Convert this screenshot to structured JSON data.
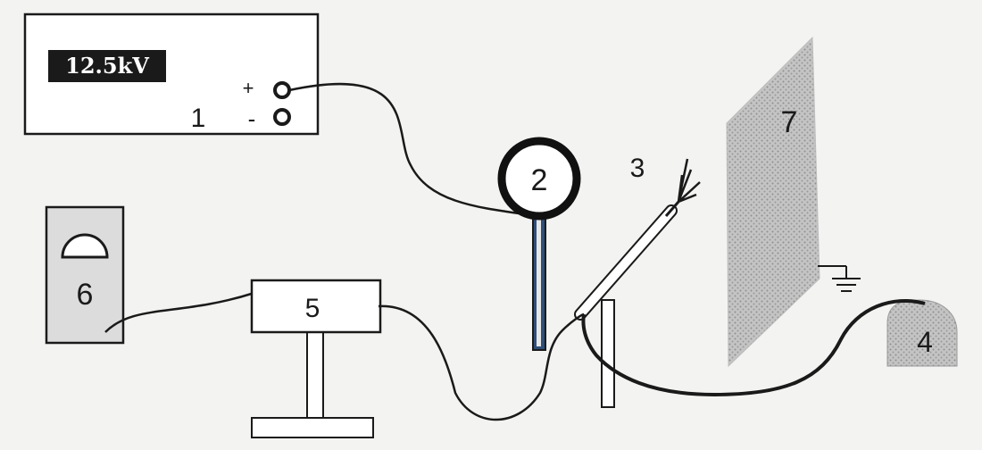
{
  "power_supply": {
    "display": "12.5kV",
    "number": "1",
    "plus": "+",
    "minus": "-"
  },
  "labels": {
    "ring": "2",
    "needle": "3",
    "pump": "4",
    "amplifier": "5",
    "meter": "6",
    "collector": "7"
  },
  "colors": {
    "ink": "#1a1a1a",
    "ring_stem": "#2f4e78",
    "display_bg": "#1a1a1a",
    "collector_fill": "#bdbdbd",
    "pump_fill": "#a9a9a9",
    "background": "#f3f3f1"
  }
}
